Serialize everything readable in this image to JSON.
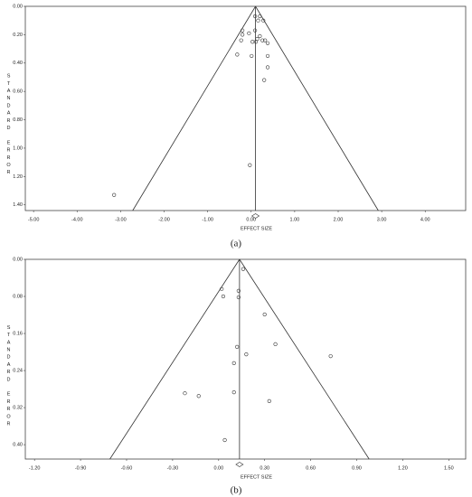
{
  "chart_data": [
    {
      "type": "funnel",
      "caption": "(a)",
      "x_label": "EFFECT SIZE",
      "y_label": "STANDARD ERROR",
      "y_inverted": true,
      "summary_effect": 0.1,
      "x": [
        0.09,
        0.2,
        0.16,
        0.28,
        -0.2,
        0.09,
        -0.05,
        -0.2,
        0.2,
        0.14,
        0.32,
        -0.23,
        0.03,
        0.11,
        0.38,
        0.26,
        -0.32,
        0.01,
        0.38,
        0.38,
        0.3,
        -0.03,
        -3.15
      ],
      "values": [
        0.07,
        0.07,
        0.1,
        0.1,
        0.17,
        0.17,
        0.19,
        0.2,
        0.21,
        0.23,
        0.24,
        0.24,
        0.25,
        0.25,
        0.26,
        0.24,
        0.34,
        0.35,
        0.35,
        0.43,
        0.52,
        1.12,
        1.33
      ],
      "xlim": [
        -5.19,
        4.93
      ],
      "ylim": [
        0,
        1.44
      ],
      "xticks": [
        {
          "value": -5,
          "label": "-5.00"
        },
        {
          "value": -4,
          "label": "-4.00"
        },
        {
          "value": -3,
          "label": "-3.00"
        },
        {
          "value": -2,
          "label": "-2.00"
        },
        {
          "value": -1,
          "label": "-1.00"
        },
        {
          "value": 0,
          "label": "0.00"
        },
        {
          "value": 1,
          "label": "1.00"
        },
        {
          "value": 2,
          "label": "2.00"
        },
        {
          "value": 3,
          "label": "3.00"
        },
        {
          "value": 4,
          "label": "4.00"
        }
      ],
      "yticks": [
        {
          "value": 0,
          "label": "0.00"
        },
        {
          "value": 0.2,
          "label": "0.20"
        },
        {
          "value": 0.4,
          "label": "0.40"
        },
        {
          "value": 0.6,
          "label": "0.60"
        },
        {
          "value": 0.8,
          "label": "0.80"
        },
        {
          "value": 1,
          "label": "1.00"
        },
        {
          "value": 1.2,
          "label": "1.20"
        },
        {
          "value": 1.4,
          "label": "1.40"
        }
      ]
    },
    {
      "type": "funnel",
      "caption": "(b)",
      "x_label": "EFFECT SIZE",
      "y_label": "STANDARD ERROR",
      "y_inverted": true,
      "summary_effect": 0.136,
      "x": [
        0.16,
        0.02,
        0.13,
        0.03,
        0.13,
        0.3,
        0.37,
        0.12,
        0.73,
        0.18,
        0.1,
        -0.22,
        -0.13,
        0.1,
        0.33,
        0.04
      ],
      "values": [
        0.021,
        0.064,
        0.068,
        0.08,
        0.082,
        0.119,
        0.183,
        0.189,
        0.209,
        0.205,
        0.224,
        0.289,
        0.295,
        0.287,
        0.306,
        0.39
      ],
      "xlim": [
        -1.26,
        1.61
      ],
      "ylim": [
        0,
        0.431
      ],
      "xticks": [
        {
          "value": -1.2,
          "label": "-1.20"
        },
        {
          "value": -0.9,
          "label": "-0.90"
        },
        {
          "value": -0.6,
          "label": "-0.60"
        },
        {
          "value": -0.3,
          "label": "-0.30"
        },
        {
          "value": 0,
          "label": "0.00"
        },
        {
          "value": 0.3,
          "label": "0.30"
        },
        {
          "value": 0.6,
          "label": "0.60"
        },
        {
          "value": 0.9,
          "label": "0.90"
        },
        {
          "value": 1.2,
          "label": "1.20"
        },
        {
          "value": 1.5,
          "label": "1.50"
        }
      ],
      "yticks": [
        {
          "value": 0,
          "label": "0.00"
        },
        {
          "value": 0.08,
          "label": "0.08"
        },
        {
          "value": 0.16,
          "label": "0.16"
        },
        {
          "value": 0.24,
          "label": "0.24"
        },
        {
          "value": 0.32,
          "label": "0.32"
        },
        {
          "value": 0.4,
          "label": "0.40"
        }
      ]
    }
  ]
}
